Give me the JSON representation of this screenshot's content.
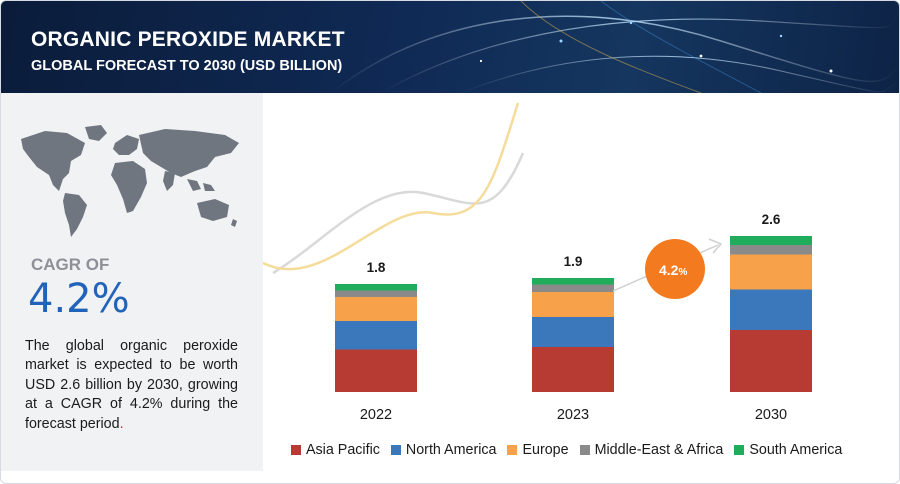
{
  "header": {
    "title": "ORGANIC PEROXIDE MARKET",
    "subtitle": "GLOBAL FORECAST TO 2030 (USD BILLION)"
  },
  "left_panel": {
    "cagr_label": "CAGR OF",
    "cagr_value": "4.2%",
    "description": "The global organic peroxide market is expected to be worth USD 2.6 billion by 2030, growing at a CAGR of 4.2% during the forecast period",
    "description_end": "."
  },
  "badge": {
    "label": "4.2",
    "unit": "%"
  },
  "colors": {
    "Asia Pacific": "#b83b33",
    "North America": "#3b77bb",
    "Europe": "#f7a24a",
    "Middle-East & Africa": "#8a8a8a",
    "South America": "#1fad5b",
    "badge": "#f47a1f"
  },
  "chart_data": {
    "type": "bar",
    "stacked": true,
    "title": "ORGANIC PEROXIDE MARKET",
    "subtitle": "GLOBAL FORECAST TO 2030 (USD BILLION)",
    "categories": [
      "2022",
      "2023",
      "2030"
    ],
    "totals": [
      "1.8",
      "1.9",
      "2.6"
    ],
    "series": [
      {
        "name": "Asia Pacific",
        "values": [
          0.71,
          0.75,
          1.03
        ]
      },
      {
        "name": "North America",
        "values": [
          0.47,
          0.5,
          0.68
        ]
      },
      {
        "name": "Europe",
        "values": [
          0.4,
          0.42,
          0.58
        ]
      },
      {
        "name": "Middle-East & Africa",
        "values": [
          0.11,
          0.12,
          0.16
        ]
      },
      {
        "name": "South America",
        "values": [
          0.11,
          0.11,
          0.15
        ]
      }
    ],
    "legend_position": "bottom",
    "grid": false,
    "annotation": "4.2%"
  }
}
